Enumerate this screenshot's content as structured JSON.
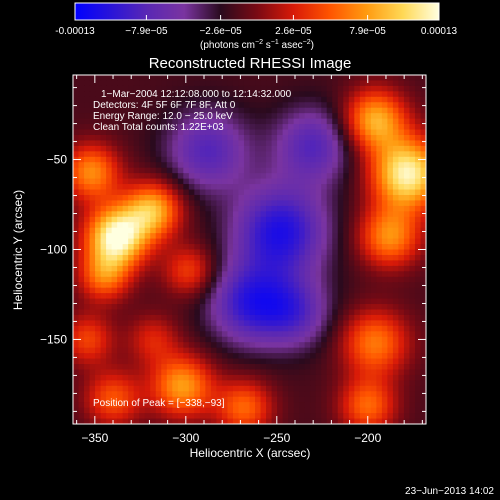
{
  "colorbar": {
    "tick_labels": [
      "-0.00013",
      "−7.9e−05",
      "−2.6e−05",
      "2.6e−05",
      "7.9e−05",
      "0.00013"
    ],
    "tick_values": [
      -0.00013,
      -7.9e-05,
      -2.6e-05,
      2.6e-05,
      7.9e-05,
      0.00013
    ],
    "range": [
      -0.00013,
      0.00013
    ],
    "colors": [
      "#0000ff",
      "#2a14d8",
      "#5a28b4",
      "#7a34a0",
      "#2a0a1e",
      "#7a0a14",
      "#d81a08",
      "#ff5400",
      "#ff9a10",
      "#ffd855",
      "#ffffe0"
    ],
    "unit_label_main": "(photons cm",
    "unit_exp1": "−2",
    "unit_mid": " s",
    "unit_exp2": "−1",
    "unit_end": " asec",
    "unit_exp3": "−2",
    "unit_close": ")"
  },
  "chart_data": {
    "type": "heatmap",
    "title": "Reconstructed RHESSI Image",
    "xlabel": "Heliocentric X (arcsec)",
    "ylabel": "Heliocentric Y (arcsec)",
    "xlim": [
      -362,
      -168
    ],
    "ylim": [
      -197,
      -3
    ],
    "x_ticks": [
      -350,
      -300,
      -250,
      -200
    ],
    "x_tick_labels": [
      "−350",
      "−300",
      "−250",
      "−200"
    ],
    "y_ticks": [
      -150,
      -100,
      -50
    ],
    "y_tick_labels": [
      "−150",
      "−100",
      "−50"
    ],
    "annotations": [
      "1−Mar−2004 12:12:08.000 to 12:14:32.000",
      "Detectors: 4F 5F 6F 7F 8F, Att 0",
      "Energy Range: 12.0 − 25.0 keV",
      "Clean    Total counts: 1.22E+03"
    ],
    "peak_label": "Position of Peak = [−338,−93]",
    "peak": [
      -338,
      -93
    ],
    "sources": [
      {
        "x": -338,
        "y": -93,
        "amp": 1.0,
        "sigma": 12
      },
      {
        "x": -318,
        "y": -78,
        "amp": 0.7,
        "sigma": 11
      },
      {
        "x": -352,
        "y": -57,
        "amp": 0.6,
        "sigma": 11
      },
      {
        "x": -345,
        "y": -115,
        "amp": 0.5,
        "sigma": 10
      },
      {
        "x": -298,
        "y": -112,
        "amp": 0.4,
        "sigma": 10
      },
      {
        "x": -178,
        "y": -58,
        "amp": 0.95,
        "sigma": 14
      },
      {
        "x": -196,
        "y": -28,
        "amp": 0.7,
        "sigma": 12
      },
      {
        "x": -188,
        "y": -93,
        "amp": 0.6,
        "sigma": 12
      },
      {
        "x": -196,
        "y": -152,
        "amp": 0.55,
        "sigma": 13
      },
      {
        "x": -200,
        "y": -187,
        "amp": 0.5,
        "sigma": 11
      },
      {
        "x": -302,
        "y": -176,
        "amp": 0.65,
        "sigma": 12
      },
      {
        "x": -268,
        "y": -188,
        "amp": 0.5,
        "sigma": 11
      },
      {
        "x": -340,
        "y": -183,
        "amp": 0.45,
        "sigma": 11
      },
      {
        "x": -354,
        "y": -150,
        "amp": 0.4,
        "sigma": 10
      },
      {
        "x": -318,
        "y": -150,
        "amp": 0.3,
        "sigma": 10
      },
      {
        "x": -248,
        "y": -90,
        "amp": -0.65,
        "sigma": 18
      },
      {
        "x": -265,
        "y": -130,
        "amp": -0.55,
        "sigma": 16
      },
      {
        "x": -288,
        "y": -45,
        "amp": -0.45,
        "sigma": 16
      },
      {
        "x": -230,
        "y": -42,
        "amp": -0.45,
        "sigma": 15
      },
      {
        "x": -240,
        "y": -135,
        "amp": -0.4,
        "sigma": 14
      }
    ]
  },
  "footer": {
    "timestamp": "23−Jun−2013 14:02"
  }
}
